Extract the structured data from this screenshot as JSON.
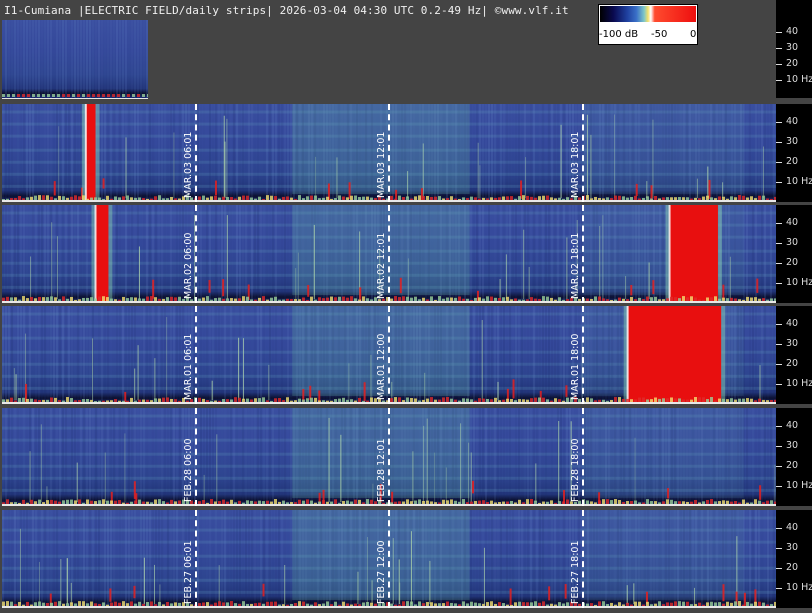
{
  "header": {
    "title": "I1-Cumiana |ELECTRIC FIELD/daily strips| 2026-03-04 04:30 UTC 0.2-49 Hz| ©www.vlf.it"
  },
  "colorbar": {
    "labels": [
      "-100 dB",
      "-50",
      "0"
    ],
    "colors": [
      "#000000",
      "#1e3f9e",
      "#7fc8c8",
      "#f4e06a",
      "#ffffff",
      "#ee0f0f"
    ]
  },
  "frequency_scale": {
    "ticks": [
      "40",
      "30",
      "20",
      "10 Hz"
    ]
  },
  "chart_data": {
    "type": "heatmap",
    "title": "I1-Cumiana |ELECTRIC FIELD/daily strips| 2026-03-04 04:30 UTC 0.2-49 Hz| ©www.vlf.it",
    "ylabel": "Hz",
    "ylim": [
      0.2,
      49
    ],
    "y_ticks": [
      10,
      20,
      30,
      40
    ],
    "colorscale": {
      "min": -100,
      "max": 0,
      "unit": "dB",
      "labels": [
        "-100 dB",
        "-50",
        "0"
      ]
    },
    "strips": [
      {
        "date": "MAR.04",
        "coverage_hours": [
          0,
          4.5
        ],
        "labels": []
      },
      {
        "date": "MAR.03",
        "labels": [
          "MAR.03  06:01",
          "MAR.03  12:01",
          "MAR.03  18:01"
        ]
      },
      {
        "date": "MAR.02",
        "labels": [
          "MAR.02  06:00",
          "MAR.02  12:01",
          "MAR.02  18:01"
        ]
      },
      {
        "date": "MAR.01",
        "labels": [
          "MAR.01  06:01",
          "MAR.01  12:00",
          "MAR.01  18:00"
        ]
      },
      {
        "date": "FEB.28",
        "labels": [
          "FEB.28  06:00",
          "FEB.28  12:01",
          "FEB.28  18:00"
        ]
      },
      {
        "date": "FEB.27",
        "labels": [
          "FEB.27  06:01",
          "FEB.27  12:00",
          "FEB.27  18:01"
        ]
      }
    ],
    "markers_hours": [
      6,
      12,
      18
    ],
    "strong_events": [
      {
        "date": "MAR.03",
        "start_hour": 2.6,
        "end_hour": 2.9
      },
      {
        "date": "MAR.02",
        "start_hour": 2.9,
        "end_hour": 3.3
      },
      {
        "date": "MAR.02",
        "start_hour": 20.7,
        "end_hour": 22.2
      },
      {
        "date": "MAR.01",
        "start_hour": 19.4,
        "end_hour": 22.3
      }
    ]
  }
}
